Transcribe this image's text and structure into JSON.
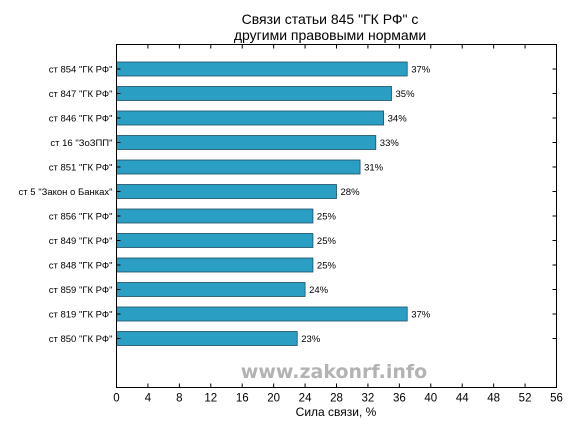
{
  "chart_data": {
    "type": "bar",
    "orientation": "horizontal",
    "title_lines": [
      "Связи статьи 845 \"ГК РФ\" с",
      "другими правовыми нормами"
    ],
    "xlabel": "Сила связи, %",
    "ylabel": "",
    "xlim": [
      0,
      56
    ],
    "xticks": [
      0,
      4,
      8,
      12,
      16,
      20,
      24,
      28,
      32,
      36,
      40,
      44,
      48,
      52,
      56
    ],
    "grid": false,
    "categories": [
      "ст 854 \"ГК РФ\"",
      "ст 847 \"ГК РФ\"",
      "ст 846 \"ГК РФ\"",
      "ст 16 \"ЗоЗПП\"",
      "ст 851 \"ГК РФ\"",
      "ст 5 \"Закон о Банках\"",
      "ст 856 \"ГК РФ\"",
      "ст 849 \"ГК РФ\"",
      "ст 848 \"ГК РФ\"",
      "ст 859 \"ГК РФ\"",
      "ст 819 \"ГК РФ\"",
      "ст 850 \"ГК РФ\""
    ],
    "values": [
      37,
      35,
      34,
      33,
      31,
      28,
      25,
      25,
      25,
      24,
      37,
      23
    ],
    "data_labels": [
      "37%",
      "35%",
      "34%",
      "33%",
      "31%",
      "28%",
      "25%",
      "25%",
      "25%",
      "24%",
      "37%",
      "23%"
    ],
    "bar_color": "#2b9ec4",
    "watermark": "www.zakonrf.info"
  }
}
